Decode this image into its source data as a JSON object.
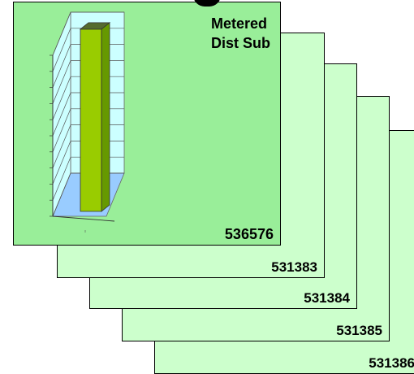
{
  "colors": {
    "card_back": "#ccffcc",
    "card_front": "#99ee99",
    "bar_face": "#99cc00",
    "bar_side": "#669900",
    "bar_top": "#556b2f",
    "wall": "#ccffff",
    "floor": "#99ccff"
  },
  "stack": {
    "front": {
      "title_line1": "Metered",
      "title_line2": "Dist Sub",
      "id": "536576"
    },
    "cards": [
      {
        "id": "531383"
      },
      {
        "id": "531384"
      },
      {
        "id": "531385"
      },
      {
        "id": "531386"
      }
    ]
  },
  "chart_data": {
    "type": "bar",
    "categories": [
      ""
    ],
    "values": [
      9.3
    ],
    "ylim": [
      0,
      10
    ],
    "grid": true,
    "title": "",
    "xlabel": "",
    "ylabel": "",
    "style": "3d-column"
  }
}
